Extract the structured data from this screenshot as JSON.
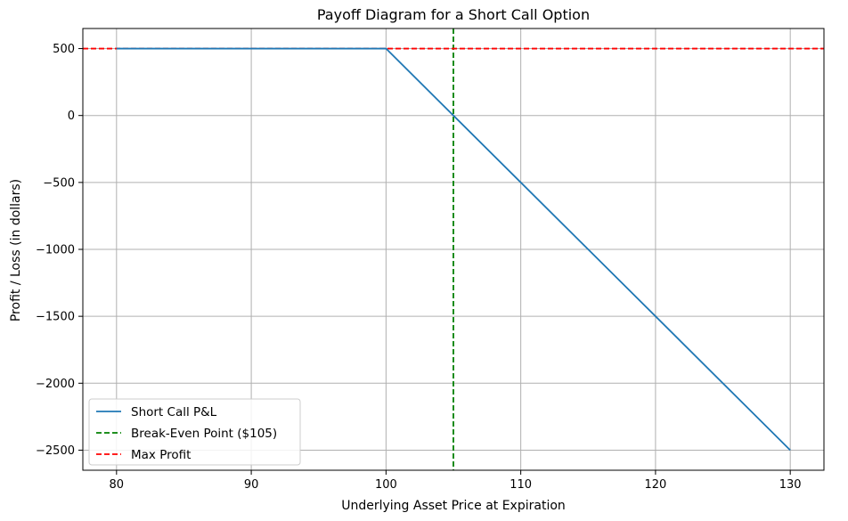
{
  "chart_data": {
    "type": "line",
    "title": "Payoff Diagram for a Short Call Option",
    "xlabel": "Underlying Asset Price at Expiration",
    "ylabel": "Profit / Loss (in dollars)",
    "xlim": [
      77.5,
      132.5
    ],
    "ylim": [
      -2650,
      650
    ],
    "xticks": [
      80,
      90,
      100,
      110,
      120,
      130
    ],
    "xtick_labels": [
      "80",
      "90",
      "100",
      "110",
      "120",
      "130"
    ],
    "yticks": [
      500,
      0,
      -500,
      -1000,
      -1500,
      -2000,
      -2500
    ],
    "ytick_labels": [
      "500",
      "0",
      "−500",
      "−1000",
      "−1500",
      "−2000",
      "−2500"
    ],
    "grid": true,
    "legend_position": "lower-left",
    "series": [
      {
        "name": "Short Call P&L",
        "style": "solid",
        "color": "#1f77b4",
        "x": [
          80,
          100,
          130
        ],
        "y": [
          500,
          500,
          -2500
        ]
      }
    ],
    "vlines": [
      {
        "name": "Break-Even Point ($105)",
        "x": 105,
        "style": "dashed",
        "color": "#008000"
      }
    ],
    "hlines": [
      {
        "name": "Max Profit",
        "y": 500,
        "style": "dashed",
        "color": "#ff0000"
      }
    ]
  }
}
